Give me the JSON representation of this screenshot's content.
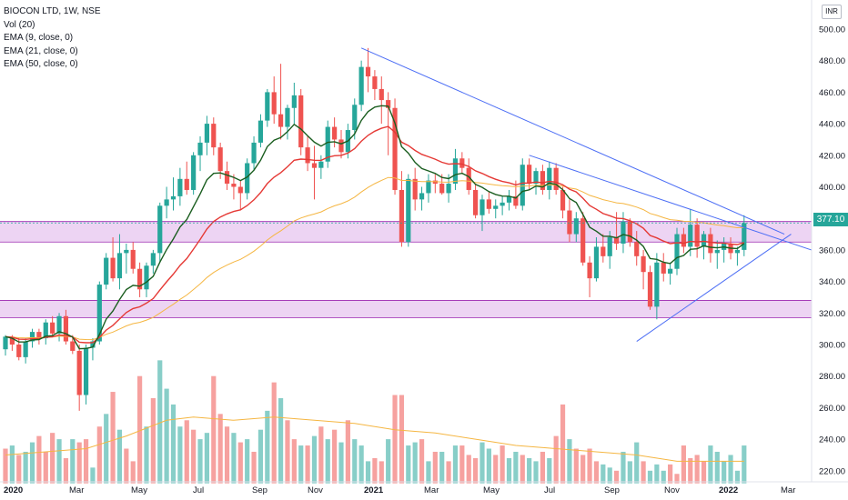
{
  "header": {
    "title": "BIOCON LTD, 1W, NSE",
    "indicators": [
      "Vol (20)",
      "EMA (9, close, 0)",
      "EMA (21, close, 0)",
      "EMA (50, close, 0)"
    ]
  },
  "currency": "INR",
  "last_price_label": "377.10",
  "colors": {
    "up": "#26a69a",
    "down": "#ef5350",
    "ema9": "#1b5e20",
    "ema21": "#e53935",
    "ema50": "#f5b642",
    "vol_ma": "#f5b642",
    "trendline": "#4c6ef5",
    "zone_fill": "#e7c6ef",
    "zone_line": "#9c27b0"
  },
  "chart_data": {
    "type": "candlestick",
    "y_ticks": [
      220,
      240,
      260,
      280,
      300,
      320,
      340,
      360,
      380,
      400,
      420,
      440,
      460,
      480,
      500
    ],
    "x_labels": [
      "2020",
      "Mar",
      "May",
      "Jul",
      "Sep",
      "Nov",
      "2021",
      "Mar",
      "May",
      "Jul",
      "Sep",
      "Nov",
      "2022",
      "Mar"
    ],
    "last_price": 377.1,
    "candles": [
      [
        297,
        306,
        293,
        305
      ],
      [
        305,
        306,
        296,
        300
      ],
      [
        300,
        304,
        290,
        292
      ],
      [
        292,
        304,
        288,
        302
      ],
      [
        302,
        310,
        298,
        308
      ],
      [
        308,
        310,
        300,
        304
      ],
      [
        304,
        316,
        300,
        314
      ],
      [
        314,
        318,
        305,
        307
      ],
      [
        307,
        320,
        302,
        318
      ],
      [
        318,
        322,
        300,
        302
      ],
      [
        302,
        306,
        294,
        296
      ],
      [
        296,
        300,
        258,
        268
      ],
      [
        268,
        300,
        262,
        298
      ],
      [
        298,
        304,
        290,
        302
      ],
      [
        302,
        340,
        300,
        338
      ],
      [
        338,
        358,
        335,
        355
      ],
      [
        355,
        368,
        340,
        342
      ],
      [
        342,
        370,
        335,
        358
      ],
      [
        358,
        364,
        345,
        360
      ],
      [
        360,
        365,
        345,
        348
      ],
      [
        348,
        352,
        330,
        335
      ],
      [
        335,
        352,
        330,
        350
      ],
      [
        350,
        360,
        345,
        358
      ],
      [
        358,
        390,
        352,
        388
      ],
      [
        388,
        400,
        380,
        392
      ],
      [
        392,
        406,
        385,
        394
      ],
      [
        394,
        412,
        388,
        405
      ],
      [
        405,
        416,
        395,
        398
      ],
      [
        398,
        422,
        395,
        420
      ],
      [
        420,
        432,
        410,
        428
      ],
      [
        428,
        445,
        420,
        440
      ],
      [
        440,
        444,
        420,
        425
      ],
      [
        425,
        428,
        405,
        410
      ],
      [
        410,
        416,
        398,
        402
      ],
      [
        402,
        408,
        392,
        400
      ],
      [
        400,
        404,
        385,
        396
      ],
      [
        396,
        418,
        392,
        415
      ],
      [
        415,
        432,
        410,
        428
      ],
      [
        428,
        446,
        425,
        442
      ],
      [
        442,
        462,
        438,
        460
      ],
      [
        460,
        470,
        440,
        446
      ],
      [
        446,
        478,
        430,
        438
      ],
      [
        438,
        452,
        430,
        450
      ],
      [
        450,
        466,
        440,
        458
      ],
      [
        458,
        462,
        420,
        425
      ],
      [
        425,
        432,
        410,
        415
      ],
      [
        415,
        426,
        392,
        412
      ],
      [
        412,
        420,
        405,
        416
      ],
      [
        416,
        442,
        412,
        438
      ],
      [
        438,
        444,
        425,
        430
      ],
      [
        430,
        436,
        418,
        422
      ],
      [
        422,
        440,
        418,
        436
      ],
      [
        436,
        456,
        430,
        452
      ],
      [
        452,
        480,
        448,
        476
      ],
      [
        476,
        488,
        460,
        470
      ],
      [
        470,
        474,
        455,
        462
      ],
      [
        462,
        470,
        440,
        455
      ],
      [
        455,
        460,
        420,
        450
      ],
      [
        450,
        456,
        395,
        398
      ],
      [
        398,
        410,
        362,
        365
      ],
      [
        365,
        408,
        362,
        405
      ],
      [
        405,
        412,
        385,
        392
      ],
      [
        392,
        400,
        385,
        396
      ],
      [
        396,
        408,
        390,
        404
      ],
      [
        404,
        408,
        396,
        402
      ],
      [
        402,
        408,
        395,
        396
      ],
      [
        396,
        408,
        390,
        402
      ],
      [
        402,
        424,
        398,
        418
      ],
      [
        418,
        422,
        408,
        412
      ],
      [
        412,
        418,
        395,
        398
      ],
      [
        398,
        402,
        380,
        382
      ],
      [
        382,
        395,
        372,
        392
      ],
      [
        392,
        397,
        383,
        386
      ],
      [
        386,
        392,
        380,
        388
      ],
      [
        388,
        394,
        382,
        390
      ],
      [
        390,
        398,
        385,
        394
      ],
      [
        394,
        404,
        386,
        388
      ],
      [
        388,
        418,
        385,
        414
      ],
      [
        414,
        418,
        398,
        402
      ],
      [
        402,
        412,
        395,
        410
      ],
      [
        410,
        414,
        395,
        398
      ],
      [
        398,
        416,
        392,
        412
      ],
      [
        412,
        415,
        395,
        398
      ],
      [
        398,
        400,
        380,
        385
      ],
      [
        385,
        392,
        365,
        370
      ],
      [
        370,
        384,
        365,
        380
      ],
      [
        380,
        384,
        350,
        352
      ],
      [
        352,
        356,
        330,
        342
      ],
      [
        342,
        368,
        340,
        362
      ],
      [
        362,
        370,
        352,
        356
      ],
      [
        356,
        372,
        348,
        368
      ],
      [
        368,
        384,
        360,
        364
      ],
      [
        364,
        384,
        358,
        378
      ],
      [
        378,
        380,
        362,
        365
      ],
      [
        365,
        372,
        350,
        356
      ],
      [
        356,
        360,
        335,
        346
      ],
      [
        346,
        350,
        322,
        324
      ],
      [
        324,
        358,
        316,
        352
      ],
      [
        352,
        358,
        340,
        345
      ],
      [
        345,
        352,
        338,
        348
      ],
      [
        348,
        374,
        344,
        370
      ],
      [
        370,
        374,
        358,
        362
      ],
      [
        362,
        386,
        356,
        376
      ],
      [
        376,
        380,
        355,
        362
      ],
      [
        362,
        372,
        354,
        370
      ],
      [
        370,
        374,
        352,
        358
      ],
      [
        358,
        366,
        348,
        360
      ],
      [
        360,
        368,
        352,
        364
      ],
      [
        364,
        368,
        354,
        358
      ],
      [
        358,
        362,
        350,
        360
      ],
      [
        360,
        382,
        356,
        377
      ]
    ],
    "volume": [
      [
        234,
        "down"
      ],
      [
        236,
        "up"
      ],
      [
        230,
        "down"
      ],
      [
        232,
        "up"
      ],
      [
        238,
        "up"
      ],
      [
        242,
        "down"
      ],
      [
        232,
        "down"
      ],
      [
        244,
        "down"
      ],
      [
        240,
        "up"
      ],
      [
        228,
        "down"
      ],
      [
        240,
        "up"
      ],
      [
        238,
        "down"
      ],
      [
        240,
        "down"
      ],
      [
        222,
        "up"
      ],
      [
        248,
        "down"
      ],
      [
        256,
        "up"
      ],
      [
        270,
        "down"
      ],
      [
        246,
        "up"
      ],
      [
        234,
        "down"
      ],
      [
        226,
        "down"
      ],
      [
        280,
        "down"
      ],
      [
        248,
        "up"
      ],
      [
        266,
        "down"
      ],
      [
        290,
        "up"
      ],
      [
        272,
        "up"
      ],
      [
        262,
        "up"
      ],
      [
        248,
        "up"
      ],
      [
        252,
        "down"
      ],
      [
        246,
        "down"
      ],
      [
        240,
        "up"
      ],
      [
        244,
        "up"
      ],
      [
        280,
        "down"
      ],
      [
        256,
        "down"
      ],
      [
        248,
        "down"
      ],
      [
        244,
        "up"
      ],
      [
        238,
        "down"
      ],
      [
        240,
        "up"
      ],
      [
        232,
        "down"
      ],
      [
        246,
        "up"
      ],
      [
        258,
        "up"
      ],
      [
        276,
        "down"
      ],
      [
        266,
        "up"
      ],
      [
        252,
        "down"
      ],
      [
        240,
        "down"
      ],
      [
        236,
        "up"
      ],
      [
        236,
        "down"
      ],
      [
        242,
        "up"
      ],
      [
        248,
        "down"
      ],
      [
        240,
        "up"
      ],
      [
        246,
        "down"
      ],
      [
        238,
        "up"
      ],
      [
        252,
        "down"
      ],
      [
        240,
        "up"
      ],
      [
        236,
        "up"
      ],
      [
        226,
        "up"
      ],
      [
        228,
        "down"
      ],
      [
        226,
        "down"
      ],
      [
        240,
        "up"
      ],
      [
        268,
        "down"
      ],
      [
        268,
        "down"
      ],
      [
        236,
        "up"
      ],
      [
        238,
        "up"
      ],
      [
        240,
        "down"
      ],
      [
        226,
        "up"
      ],
      [
        232,
        "down"
      ],
      [
        232,
        "up"
      ],
      [
        226,
        "down"
      ],
      [
        236,
        "up"
      ],
      [
        236,
        "down"
      ],
      [
        230,
        "down"
      ],
      [
        228,
        "down"
      ],
      [
        238,
        "up"
      ],
      [
        234,
        "up"
      ],
      [
        230,
        "down"
      ],
      [
        236,
        "down"
      ],
      [
        228,
        "up"
      ],
      [
        232,
        "up"
      ],
      [
        230,
        "down"
      ],
      [
        228,
        "up"
      ],
      [
        226,
        "up"
      ],
      [
        232,
        "down"
      ],
      [
        228,
        "up"
      ],
      [
        242,
        "down"
      ],
      [
        262,
        "down"
      ],
      [
        240,
        "up"
      ],
      [
        234,
        "down"
      ],
      [
        230,
        "down"
      ],
      [
        234,
        "down"
      ],
      [
        226,
        "down"
      ],
      [
        224,
        "up"
      ],
      [
        222,
        "up"
      ],
      [
        220,
        "down"
      ],
      [
        232,
        "up"
      ],
      [
        226,
        "up"
      ],
      [
        238,
        "up"
      ],
      [
        226,
        "down"
      ],
      [
        220,
        "up"
      ],
      [
        224,
        "up"
      ],
      [
        220,
        "up"
      ],
      [
        224,
        "down"
      ],
      [
        218,
        "down"
      ],
      [
        236,
        "down"
      ],
      [
        228,
        "down"
      ],
      [
        230,
        "down"
      ],
      [
        226,
        "down"
      ],
      [
        236,
        "up"
      ],
      [
        232,
        "up"
      ],
      [
        226,
        "up"
      ],
      [
        230,
        "up"
      ],
      [
        220,
        "up"
      ],
      [
        236,
        "up"
      ]
    ],
    "volume_ma": [
      [
        0,
        230
      ],
      [
        6,
        232
      ],
      [
        12,
        234
      ],
      [
        18,
        242
      ],
      [
        24,
        252
      ],
      [
        28,
        254
      ],
      [
        34,
        252
      ],
      [
        40,
        254
      ],
      [
        46,
        252
      ],
      [
        52,
        250
      ],
      [
        58,
        246
      ],
      [
        64,
        244
      ],
      [
        70,
        240
      ],
      [
        76,
        236
      ],
      [
        82,
        234
      ],
      [
        88,
        232
      ],
      [
        94,
        230
      ],
      [
        100,
        226
      ],
      [
        106,
        226
      ],
      [
        110,
        226
      ]
    ],
    "zones": [
      {
        "from": 365,
        "to": 378
      },
      {
        "from": 317,
        "to": 328
      }
    ],
    "trendlines": [
      {
        "from": [
          53,
          488
        ],
        "to": [
          116,
          370
        ]
      },
      {
        "from": [
          78,
          420
        ],
        "to": [
          120,
          360
        ]
      },
      {
        "from": [
          94,
          302
        ],
        "to": [
          117,
          370
        ]
      }
    ]
  }
}
